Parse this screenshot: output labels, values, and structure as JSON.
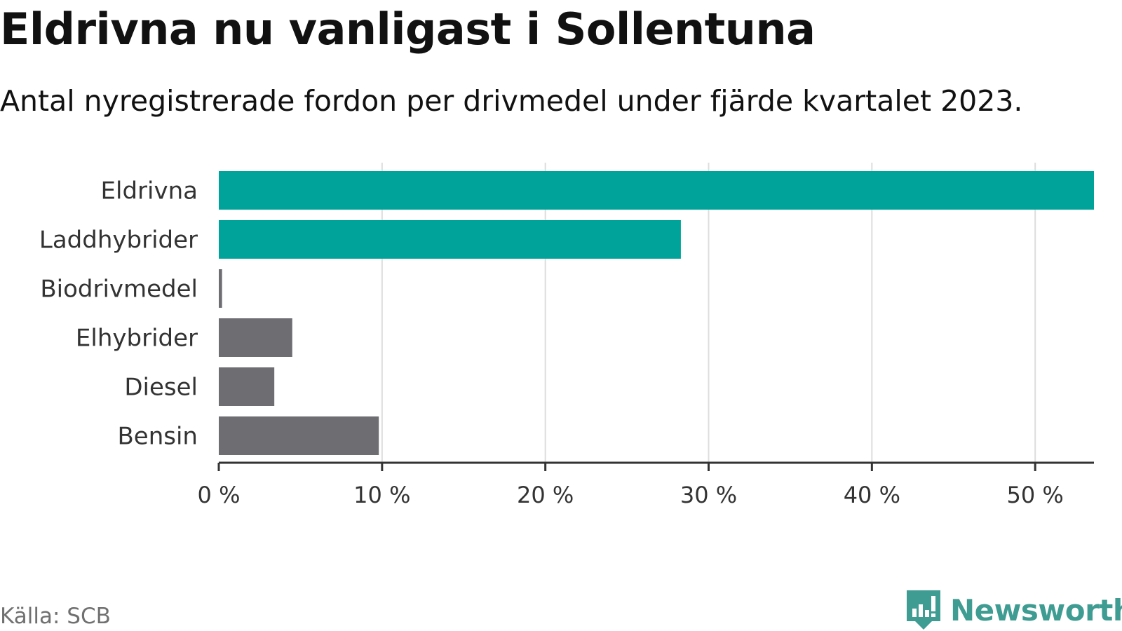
{
  "chart_data": {
    "type": "bar",
    "orientation": "horizontal",
    "title": "Eldrivna nu vanligast i Sollentuna",
    "subtitle": "Antal nyregistrerade fordon per drivmedel under fjärde kvartalet 2023.",
    "categories": [
      "Eldrivna",
      "Laddhybrider",
      "Biodrivmedel",
      "Elhybrider",
      "Diesel",
      "Bensin"
    ],
    "values": [
      53.6,
      28.3,
      0.2,
      4.5,
      3.4,
      9.8
    ],
    "bar_colors": [
      "#00a39a",
      "#00a39a",
      "#6e6d72",
      "#6e6d72",
      "#6e6d72",
      "#6e6d72"
    ],
    "xlim": [
      0,
      53.6
    ],
    "xticks": [
      0,
      10,
      20,
      30,
      40,
      50
    ],
    "xtick_labels": [
      "0 %",
      "10 %",
      "20 %",
      "30 %",
      "40 %",
      "50 %"
    ],
    "xlabel": "",
    "ylabel": "",
    "grid": true,
    "legend": "none"
  },
  "source": "Källa: SCB",
  "brand": {
    "name": "Newsworthy",
    "icon": "newsworthy-logo-icon",
    "color": "#3f9c92"
  },
  "colors": {
    "accent": "#00a39a",
    "neutral": "#6e6d72",
    "grid": "#dddddd",
    "axis": "#333333"
  }
}
